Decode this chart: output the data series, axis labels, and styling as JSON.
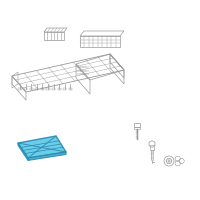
{
  "background_color": "#ffffff",
  "border_color": "#cccccc",
  "gray": "#999999",
  "blue_face": "#5bc8e8",
  "blue_edge": "#2a8ab0",
  "blue_inner": "#3aaccc"
}
